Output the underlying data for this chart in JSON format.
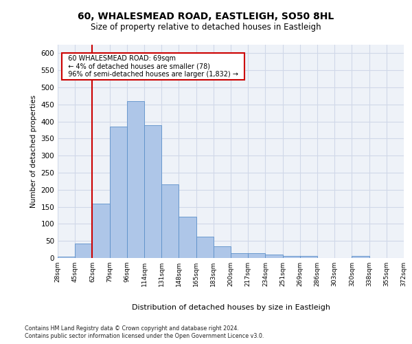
{
  "title": "60, WHALESMEAD ROAD, EASTLEIGH, SO50 8HL",
  "subtitle": "Size of property relative to detached houses in Eastleigh",
  "xlabel": "Distribution of detached houses by size in Eastleigh",
  "ylabel": "Number of detached properties",
  "bar_values": [
    5,
    42,
    160,
    385,
    460,
    390,
    215,
    120,
    63,
    35,
    15,
    15,
    10,
    6,
    6,
    0,
    0,
    7,
    0,
    0
  ],
  "bin_labels": [
    "28sqm",
    "45sqm",
    "62sqm",
    "79sqm",
    "96sqm",
    "114sqm",
    "131sqm",
    "148sqm",
    "165sqm",
    "183sqm",
    "200sqm",
    "217sqm",
    "234sqm",
    "251sqm",
    "269sqm",
    "286sqm",
    "303sqm",
    "320sqm",
    "338sqm",
    "355sqm",
    "372sqm"
  ],
  "bar_color": "#aec6e8",
  "bar_edge_color": "#5b8fc9",
  "grid_color": "#d0d8e8",
  "bg_color": "#eef2f8",
  "vline_x": 2,
  "vline_color": "#cc0000",
  "annotation_text": "  60 WHALESMEAD ROAD: 69sqm  \n  ← 4% of detached houses are smaller (78)  \n  96% of semi-detached houses are larger (1,832) →  ",
  "annotation_box_color": "#cc0000",
  "ylim": [
    0,
    625
  ],
  "yticks": [
    0,
    50,
    100,
    150,
    200,
    250,
    300,
    350,
    400,
    450,
    500,
    550,
    600
  ],
  "footnote_line1": "Contains HM Land Registry data © Crown copyright and database right 2024.",
  "footnote_line2": "Contains public sector information licensed under the Open Government Licence v3.0."
}
